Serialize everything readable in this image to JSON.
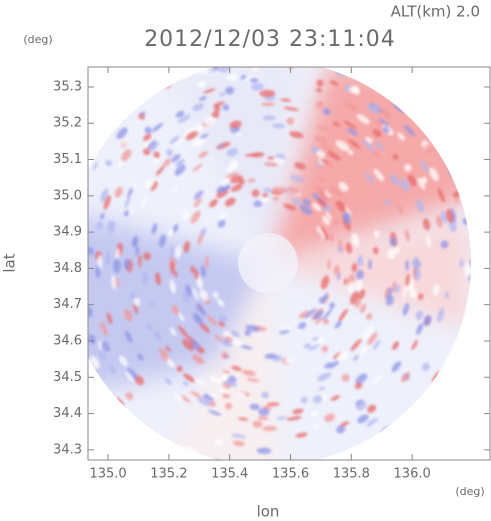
{
  "chart_data": {
    "type": "radar-field",
    "altitude_label": "ALT(km)  2.0",
    "title": "2012/12/03 23:11:04",
    "ylabel": "lat",
    "xlabel": "lon",
    "yunit": "(deg)",
    "xunit": "(deg)",
    "xlim": [
      134.934,
      136.256
    ],
    "ylim": [
      34.272,
      35.355
    ],
    "xticks": [
      {
        "value": 135,
        "label": "135.0"
      },
      135.2,
      135.4,
      135.6,
      135.8,
      {
        "value": 136,
        "label": "136.0"
      }
    ],
    "yticks": [
      {
        "value": 34.3,
        "label": "34.3"
      },
      34.4,
      34.5,
      34.6,
      34.7,
      34.8,
      34.9,
      {
        "value": 35,
        "label": "35.0"
      },
      35.1,
      35.2,
      35.3
    ]
  }
}
